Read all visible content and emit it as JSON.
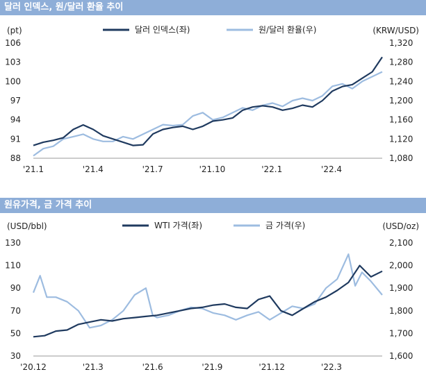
{
  "chart_data": [
    {
      "type": "line",
      "title": "달러 인덱스, 원/달러 환율 추이",
      "left_unit": "(pt)",
      "right_unit": "(KRW/USD)",
      "x_ticks": [
        "'21.1",
        "'21.4",
        "'21.7",
        "'21.10",
        "'22.1",
        "'22.4"
      ],
      "y_left_ticks": [
        "88",
        "91",
        "94",
        "97",
        "100",
        "103",
        "106"
      ],
      "y_right_ticks": [
        "1,080",
        "1,120",
        "1,160",
        "1,200",
        "1,240",
        "1,280",
        "1,320"
      ],
      "ylim_left": [
        88,
        106
      ],
      "ylim_right": [
        1080,
        1320
      ],
      "xlim": [
        0,
        17.5
      ],
      "colors": {
        "left": "#1f3a5f",
        "right": "#9dbce0"
      },
      "series": [
        {
          "name": "달러 인덱스(좌)",
          "axis": "left",
          "x": [
            0,
            0.5,
            1,
            1.5,
            2,
            2.5,
            3,
            3.5,
            4,
            4.5,
            5,
            5.5,
            6,
            6.5,
            7,
            7.5,
            8,
            8.5,
            9,
            9.5,
            10,
            10.5,
            11,
            11.5,
            12,
            12.5,
            13,
            13.5,
            14,
            14.5,
            15,
            15.5,
            16,
            16.5,
            17,
            17.5
          ],
          "values": [
            90.0,
            90.5,
            90.8,
            91.2,
            92.5,
            93.2,
            92.5,
            91.5,
            91.0,
            90.5,
            90.0,
            90.1,
            91.8,
            92.5,
            92.8,
            93.0,
            92.5,
            93.0,
            93.8,
            94.0,
            94.3,
            95.5,
            96.0,
            96.2,
            96.0,
            95.5,
            95.8,
            96.3,
            96.0,
            97.0,
            98.5,
            99.2,
            99.5,
            100.5,
            101.5,
            103.8
          ]
        },
        {
          "name": "원/달러 환율(우)",
          "axis": "right",
          "x": [
            0,
            0.5,
            1,
            1.5,
            2,
            2.5,
            3,
            3.5,
            4,
            4.5,
            5,
            5.5,
            6,
            6.5,
            7,
            7.5,
            8,
            8.5,
            9,
            9.5,
            10,
            10.5,
            11,
            11.5,
            12,
            12.5,
            13,
            13.5,
            14,
            14.5,
            15,
            15.5,
            16,
            16.5,
            17,
            17.5
          ],
          "values": [
            1085,
            1100,
            1105,
            1120,
            1125,
            1130,
            1120,
            1115,
            1115,
            1125,
            1120,
            1130,
            1140,
            1150,
            1148,
            1150,
            1168,
            1175,
            1160,
            1165,
            1175,
            1185,
            1180,
            1190,
            1195,
            1188,
            1200,
            1205,
            1200,
            1210,
            1230,
            1235,
            1225,
            1240,
            1250,
            1260
          ]
        }
      ]
    },
    {
      "type": "line",
      "title": "원유가격, 금 가격 추이",
      "left_unit": "(USD/bbl)",
      "right_unit": "(USD/oz)",
      "x_ticks": [
        "'20.12",
        "'21.3",
        "'21.6",
        "'21.9",
        "'21.12",
        "'22.3"
      ],
      "y_left_ticks": [
        "30",
        "50",
        "70",
        "90",
        "110",
        "130"
      ],
      "y_right_ticks": [
        "1,600",
        "1,700",
        "1,800",
        "1,900",
        "2,000",
        "2,100"
      ],
      "ylim_left": [
        30,
        130
      ],
      "ylim_right": [
        1600,
        2100
      ],
      "xlim": [
        0,
        15.5
      ],
      "colors": {
        "left": "#1f3a5f",
        "right": "#9dbce0"
      },
      "series": [
        {
          "name": "WTI 가격(좌)",
          "axis": "left",
          "x": [
            0,
            0.5,
            1,
            1.5,
            2,
            2.5,
            3,
            3.5,
            4,
            4.5,
            5,
            5.5,
            6,
            6.5,
            7,
            7.5,
            8,
            8.5,
            9,
            9.5,
            10,
            10.5,
            11,
            11.5,
            12,
            12.5,
            13,
            13.5,
            14,
            14.5,
            15,
            15.5
          ],
          "values": [
            47,
            48,
            52,
            53,
            58,
            60,
            62,
            61,
            63,
            64,
            65,
            66,
            68,
            70,
            72,
            73,
            75,
            76,
            73,
            72,
            80,
            83,
            70,
            66,
            72,
            78,
            82,
            88,
            95,
            110,
            100,
            105
          ]
        },
        {
          "name": "금 가격(우)",
          "axis": "right",
          "x": [
            0,
            0.3,
            0.6,
            1,
            1.5,
            2,
            2.5,
            3,
            3.5,
            4,
            4.5,
            5,
            5.3,
            5.5,
            6,
            6.5,
            7,
            7.5,
            8,
            8.5,
            9,
            9.5,
            10,
            10.5,
            11,
            11.5,
            12,
            12.5,
            13,
            13.5,
            14,
            14.3,
            14.6,
            15,
            15.5
          ],
          "values": [
            1880,
            1955,
            1860,
            1860,
            1840,
            1800,
            1725,
            1735,
            1760,
            1800,
            1870,
            1900,
            1780,
            1770,
            1780,
            1800,
            1815,
            1810,
            1790,
            1780,
            1760,
            1780,
            1795,
            1760,
            1790,
            1820,
            1810,
            1830,
            1900,
            1940,
            2050,
            1910,
            1970,
            1930,
            1870
          ]
        }
      ]
    }
  ]
}
